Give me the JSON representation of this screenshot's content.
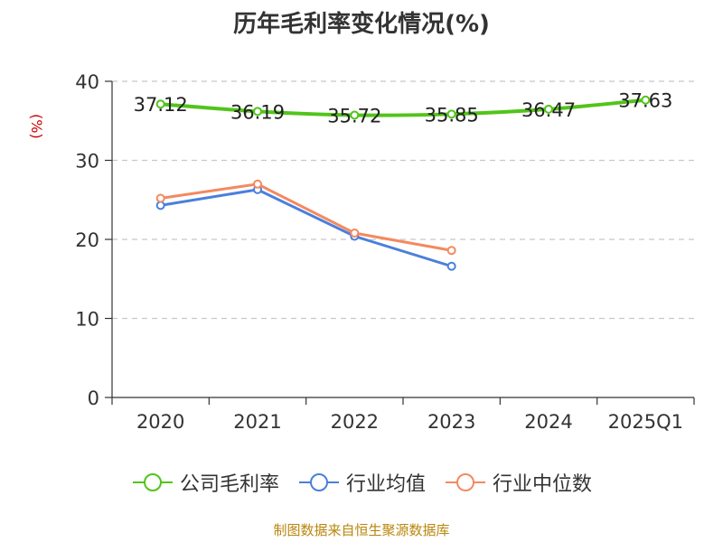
{
  "chart_data": {
    "type": "line",
    "title": "历年毛利率变化情况(%)",
    "ylabel": "(%)",
    "categories": [
      "2020",
      "2021",
      "2022",
      "2023",
      "2024",
      "2025Q1"
    ],
    "ylim": [
      0,
      40
    ],
    "yticks": [
      0,
      10,
      20,
      30,
      40
    ],
    "grid": true,
    "legend_position": "bottom",
    "series": [
      {
        "name": "公司毛利率",
        "color": "#52c41a",
        "values": [
          37.12,
          36.19,
          35.72,
          35.85,
          36.47,
          37.63
        ],
        "labels": [
          "37.12",
          "36.19",
          "35.72",
          "35.85",
          "36.47",
          "37.63"
        ]
      },
      {
        "name": "行业均值",
        "color": "#4a7fdc",
        "values": [
          24.3,
          26.3,
          20.4,
          16.6,
          null,
          null
        ]
      },
      {
        "name": "行业中位数",
        "color": "#f4895f",
        "values": [
          25.2,
          27.0,
          20.8,
          18.6,
          null,
          null
        ]
      }
    ],
    "source": "制图数据来自恒生聚源数据库"
  }
}
